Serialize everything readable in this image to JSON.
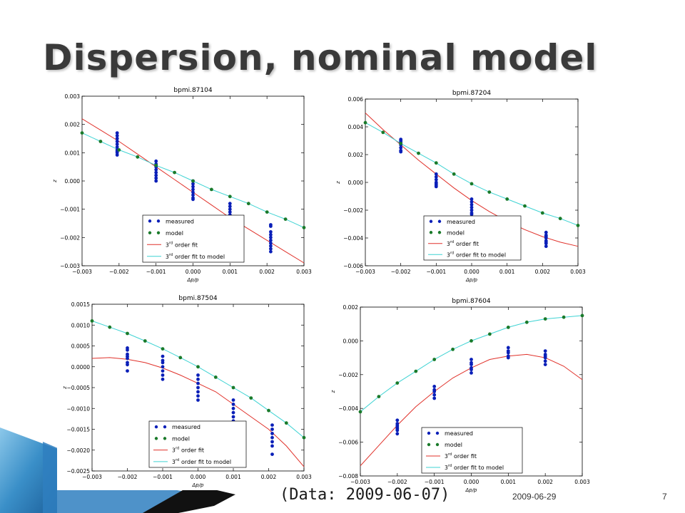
{
  "slide": {
    "title": "Dispersion, nominal model",
    "data_note": "(Data: 2009-06-07)",
    "footer_date": "2009-06-29",
    "page_number": "7"
  },
  "colors": {
    "measured": "#0a1fb8",
    "model": "#1a7a2a",
    "fit": "#e0312a",
    "model_fit": "#3fd3d3",
    "title": "#3a3a3a",
    "deco_blue": "#3a8fc8"
  },
  "chart_data": [
    {
      "type": "scatter",
      "title": "bpmi.87104",
      "xlabel": "Δp/p",
      "ylabel": "z",
      "xlim": [
        -0.003,
        0.003
      ],
      "ylim": [
        -0.003,
        0.003
      ],
      "xticks": [
        "−0.003",
        "−0.002",
        "−0.001",
        "0.000",
        "0.001",
        "0.002",
        "0.003"
      ],
      "yticks": [
        "0.003",
        "0.002",
        "0.001",
        "0.000",
        "−0.001",
        "−0.002",
        "−0.003"
      ],
      "xtick_values": [
        -0.003,
        -0.002,
        -0.001,
        0.0,
        0.001,
        0.002,
        0.003
      ],
      "ytick_values": [
        0.003,
        0.002,
        0.001,
        0.0,
        -0.001,
        -0.002,
        -0.003
      ],
      "legend": {
        "placement": "lower-right",
        "entries": [
          "measured",
          "model",
          "rd order fit",
          "rd order fit to model"
        ]
      },
      "series": [
        {
          "name": "measured",
          "style": "points",
          "x": [
            -0.00205,
            -0.00205,
            -0.00205,
            -0.00205,
            -0.00205,
            -0.00205,
            -0.00205,
            -0.00205,
            -0.00205,
            -0.00205,
            -0.001,
            -0.001,
            -0.001,
            -0.001,
            -0.001,
            -0.001,
            -0.001,
            -0.001,
            -0.001,
            0.0,
            0.0,
            0.0,
            0.0,
            0.0,
            0.0,
            0.0,
            0.0,
            0.001,
            0.001,
            0.001,
            0.001,
            0.001,
            0.001,
            0.001,
            0.0021,
            0.0021,
            0.0021,
            0.0021,
            0.0021,
            0.0021,
            0.0021,
            0.0021,
            0.0021,
            0.0021
          ],
          "y": [
            0.0017,
            0.0016,
            0.0015,
            0.0014,
            0.0013,
            0.0012,
            0.0011,
            0.00105,
            0.001,
            0.00092,
            0.0007,
            0.0006,
            0.00055,
            0.0005,
            0.0004,
            0.0003,
            0.0002,
            0.0001,
            0.0,
            0.0,
            -0.0001,
            -0.0002,
            -0.0003,
            -0.0004,
            -0.0005,
            -0.0006,
            -0.00065,
            -0.0008,
            -0.0009,
            -0.001,
            -0.0011,
            -0.0012,
            -0.0013,
            -0.0015,
            -0.0016,
            -0.0018,
            -0.0019,
            -0.002,
            -0.0021,
            -0.0022,
            -0.0023,
            -0.0024,
            -0.0025,
            -0.00155
          ]
        },
        {
          "name": "model",
          "style": "points",
          "x": [
            -0.003,
            -0.0025,
            -0.002,
            -0.0015,
            -0.001,
            -0.0005,
            0.0,
            0.0005,
            0.001,
            0.0015,
            0.002,
            0.0025,
            0.003
          ],
          "y": [
            0.0017,
            0.0014,
            0.0011,
            0.00085,
            0.00055,
            0.0003,
            0.0,
            -0.0003,
            -0.00055,
            -0.0008,
            -0.0011,
            -0.00135,
            -0.00165
          ]
        },
        {
          "name": "rd order fit",
          "style": "line",
          "x": [
            -0.003,
            -0.0025,
            -0.002,
            -0.0015,
            -0.001,
            -0.0005,
            0.0,
            0.0005,
            0.001,
            0.0015,
            0.002,
            0.0025,
            0.003
          ],
          "y": [
            0.0022,
            0.0018,
            0.0014,
            0.00095,
            0.0005,
            5e-05,
            -0.0004,
            -0.00085,
            -0.0013,
            -0.0017,
            -0.0021,
            -0.0025,
            -0.0029
          ]
        },
        {
          "name": "rd order fit to model",
          "style": "line",
          "x": [
            -0.003,
            -0.0025,
            -0.002,
            -0.0015,
            -0.001,
            -0.0005,
            0.0,
            0.0005,
            0.001,
            0.0015,
            0.002,
            0.0025,
            0.003
          ],
          "y": [
            0.0017,
            0.0014,
            0.0011,
            0.00085,
            0.00055,
            0.0003,
            0.0,
            -0.0003,
            -0.00055,
            -0.0008,
            -0.0011,
            -0.00135,
            -0.00165
          ]
        }
      ]
    },
    {
      "type": "scatter",
      "title": "bpmi.87204",
      "xlabel": "Δp/p",
      "ylabel": "z",
      "xlim": [
        -0.003,
        0.003
      ],
      "ylim": [
        -0.006,
        0.006
      ],
      "xticks": [
        "−0.003",
        "−0.002",
        "−0.001",
        "0.000",
        "0.001",
        "0.002",
        "0.003"
      ],
      "yticks": [
        "0.006",
        "0.004",
        "0.002",
        "0.000",
        "−0.002",
        "−0.004",
        "−0.006"
      ],
      "xtick_values": [
        -0.003,
        -0.002,
        -0.001,
        0.0,
        0.001,
        0.002,
        0.003
      ],
      "ytick_values": [
        0.006,
        0.004,
        0.002,
        0.0,
        -0.002,
        -0.004,
        -0.006
      ],
      "legend": {
        "placement": "lower-right",
        "entries": [
          "measured",
          "model",
          "rd order fit",
          "rd order fit to model"
        ]
      },
      "series": [
        {
          "name": "measured",
          "style": "points",
          "x": [
            -0.002,
            -0.002,
            -0.002,
            -0.002,
            -0.002,
            -0.002,
            -0.002,
            -0.001,
            -0.001,
            -0.001,
            -0.001,
            -0.001,
            -0.001,
            -0.001,
            0.0,
            0.0,
            0.0,
            0.0,
            0.0,
            0.0,
            0.0,
            0.0021,
            0.0021,
            0.0021,
            0.0021,
            0.0021,
            0.0021,
            0.0021,
            0.0021
          ],
          "y": [
            0.0031,
            0.003,
            0.0029,
            0.0027,
            0.0025,
            0.0023,
            0.0022,
            0.0006,
            0.0004,
            0.0002,
            0.0,
            -0.0001,
            -0.0002,
            -0.0003,
            -0.0012,
            -0.0014,
            -0.0016,
            -0.0018,
            -0.002,
            -0.0022,
            -0.0023,
            -0.0036,
            -0.0038,
            -0.0039,
            -0.004,
            -0.0042,
            -0.0043,
            -0.0044,
            -0.0046
          ]
        },
        {
          "name": "model",
          "style": "points",
          "x": [
            -0.003,
            -0.0025,
            -0.002,
            -0.0015,
            -0.001,
            -0.0005,
            0.0,
            0.0005,
            0.001,
            0.0015,
            0.002,
            0.0025,
            0.003
          ],
          "y": [
            0.0043,
            0.0036,
            0.0028,
            0.0021,
            0.0014,
            0.0006,
            -0.0001,
            -0.0007,
            -0.0012,
            -0.0017,
            -0.0022,
            -0.0026,
            -0.0031
          ]
        },
        {
          "name": "rd order fit",
          "style": "line",
          "x": [
            -0.003,
            -0.0025,
            -0.002,
            -0.0015,
            -0.001,
            -0.0005,
            0.0,
            0.0005,
            0.001,
            0.0015,
            0.002,
            0.0025,
            0.003
          ],
          "y": [
            0.005,
            0.0038,
            0.0027,
            0.0016,
            0.0006,
            -0.0004,
            -0.0013,
            -0.0021,
            -0.0028,
            -0.0034,
            -0.0039,
            -0.0043,
            -0.0046
          ]
        },
        {
          "name": "rd order fit to model",
          "style": "line",
          "x": [
            -0.003,
            -0.0025,
            -0.002,
            -0.0015,
            -0.001,
            -0.0005,
            0.0,
            0.0005,
            0.001,
            0.0015,
            0.002,
            0.0025,
            0.003
          ],
          "y": [
            0.0043,
            0.0036,
            0.0028,
            0.0021,
            0.0014,
            0.0006,
            -0.0001,
            -0.0007,
            -0.0012,
            -0.0017,
            -0.0022,
            -0.0026,
            -0.0031
          ]
        }
      ]
    },
    {
      "type": "scatter",
      "title": "bpmi.87504",
      "xlabel": "Δp/p",
      "ylabel": "z",
      "xlim": [
        -0.003,
        0.003
      ],
      "ylim": [
        -0.0025,
        0.0015
      ],
      "xticks": [
        "−0.003",
        "−0.002",
        "−0.001",
        "0.000",
        "0.001",
        "0.002",
        "0.003"
      ],
      "yticks": [
        "0.0015",
        "0.0010",
        "0.0005",
        "0.0000",
        "−0.0005",
        "−0.0010",
        "−0.0015",
        "−0.0020",
        "−0.0025"
      ],
      "xtick_values": [
        -0.003,
        -0.002,
        -0.001,
        0.0,
        0.001,
        0.002,
        0.003
      ],
      "ytick_values": [
        0.0015,
        0.001,
        0.0005,
        0.0,
        -0.0005,
        -0.001,
        -0.0015,
        -0.002,
        -0.0025
      ],
      "legend": {
        "placement": "lower-right",
        "entries": [
          "measured",
          "model",
          "rd order fit",
          "rd order fit to model"
        ]
      },
      "series": [
        {
          "name": "measured",
          "style": "points",
          "x": [
            -0.002,
            -0.002,
            -0.002,
            -0.002,
            -0.002,
            -0.002,
            -0.002,
            -0.002,
            -0.001,
            -0.001,
            -0.001,
            -0.001,
            -0.001,
            -0.001,
            -0.001,
            0.0,
            0.0,
            0.0,
            0.0,
            0.0,
            0.0,
            0.0,
            0.001,
            0.001,
            0.001,
            0.001,
            0.001,
            0.001,
            0.0021,
            0.0021,
            0.0021,
            0.0021,
            0.0021,
            0.0021,
            0.0021
          ],
          "y": [
            0.00045,
            0.0004,
            0.0003,
            0.00025,
            0.0002,
            0.0001,
            5e-05,
            -0.0001,
            0.00025,
            0.00015,
            0.0001,
            0.0,
            -0.0001,
            -0.0002,
            -0.0003,
            -0.0002,
            -0.0003,
            -0.0004,
            -0.0005,
            -0.0006,
            -0.0007,
            -0.0008,
            -0.0008,
            -0.0009,
            -0.001,
            -0.0011,
            -0.0012,
            -0.0013,
            -0.0014,
            -0.0015,
            -0.0016,
            -0.0017,
            -0.0018,
            -0.0019,
            -0.0021
          ]
        },
        {
          "name": "model",
          "style": "points",
          "x": [
            -0.003,
            -0.0025,
            -0.002,
            -0.0015,
            -0.001,
            -0.0005,
            0.0,
            0.0005,
            0.001,
            0.0015,
            0.002,
            0.0025,
            0.003
          ],
          "y": [
            0.0011,
            0.00095,
            0.0008,
            0.00062,
            0.00043,
            0.00022,
            0.0,
            -0.00025,
            -0.0005,
            -0.00075,
            -0.00105,
            -0.00135,
            -0.0017
          ]
        },
        {
          "name": "rd order fit",
          "style": "line",
          "x": [
            -0.003,
            -0.0025,
            -0.002,
            -0.0015,
            -0.001,
            -0.0005,
            0.0,
            0.0005,
            0.001,
            0.0015,
            0.002,
            0.0025,
            0.003
          ],
          "y": [
            0.0002,
            0.00022,
            0.00018,
            0.0001,
            -3e-05,
            -0.0002,
            -0.0004,
            -0.0006,
            -0.0009,
            -0.0012,
            -0.0015,
            -0.0019,
            -0.0024
          ]
        },
        {
          "name": "rd order fit to model",
          "style": "line",
          "x": [
            -0.003,
            -0.0025,
            -0.002,
            -0.0015,
            -0.001,
            -0.0005,
            0.0,
            0.0005,
            0.001,
            0.0015,
            0.002,
            0.0025,
            0.003
          ],
          "y": [
            0.0011,
            0.00095,
            0.0008,
            0.00062,
            0.00043,
            0.00022,
            0.0,
            -0.00025,
            -0.0005,
            -0.00075,
            -0.00105,
            -0.00135,
            -0.0017
          ]
        }
      ]
    },
    {
      "type": "scatter",
      "title": "bpmi.87604",
      "xlabel": "Δp/p",
      "ylabel": "z",
      "xlim": [
        -0.003,
        0.003
      ],
      "ylim": [
        -0.008,
        0.002
      ],
      "xticks": [
        "−0.003",
        "−0.002",
        "−0.001",
        "0.000",
        "0.001",
        "0.002",
        "0.003"
      ],
      "yticks": [
        "0.002",
        "0.000",
        "−0.002",
        "−0.004",
        "−0.006",
        "−0.008"
      ],
      "xtick_values": [
        -0.003,
        -0.002,
        -0.001,
        0.0,
        0.001,
        0.002,
        0.003
      ],
      "ytick_values": [
        0.002,
        0.0,
        -0.002,
        -0.004,
        -0.006,
        -0.008
      ],
      "legend": {
        "placement": "lower-center",
        "entries": [
          "measured",
          "model",
          "rd order fit",
          "rd order fit to model"
        ]
      },
      "series": [
        {
          "name": "measured",
          "style": "points",
          "x": [
            -0.002,
            -0.002,
            -0.002,
            -0.002,
            -0.002,
            -0.002,
            -0.002,
            -0.001,
            -0.001,
            -0.001,
            -0.001,
            -0.001,
            0.0,
            0.0,
            0.0,
            0.0,
            0.0,
            0.0,
            0.001,
            0.001,
            0.001,
            0.001,
            0.001,
            0.002,
            0.002,
            0.002,
            0.002,
            0.002,
            0.002
          ],
          "y": [
            -0.0047,
            -0.0049,
            -0.005,
            -0.0051,
            -0.0052,
            -0.0053,
            -0.0055,
            -0.0027,
            -0.0029,
            -0.003,
            -0.0032,
            -0.0034,
            -0.0011,
            -0.0013,
            -0.0014,
            -0.0016,
            -0.0017,
            -0.0019,
            -0.0004,
            -0.0006,
            -0.0007,
            -0.0009,
            -0.001,
            -0.0006,
            -0.0008,
            -0.0009,
            -0.001,
            -0.0012,
            -0.0014
          ]
        },
        {
          "name": "model",
          "style": "points",
          "x": [
            -0.003,
            -0.0025,
            -0.002,
            -0.0015,
            -0.001,
            -0.0005,
            0.0,
            0.0005,
            0.001,
            0.0015,
            0.002,
            0.0025,
            0.003
          ],
          "y": [
            -0.0042,
            -0.0033,
            -0.0025,
            -0.0018,
            -0.0011,
            -0.0005,
            0.0,
            0.0004,
            0.0008,
            0.0011,
            0.0013,
            0.0014,
            0.0015
          ]
        },
        {
          "name": "rd order fit",
          "style": "line",
          "x": [
            -0.003,
            -0.0025,
            -0.002,
            -0.0015,
            -0.001,
            -0.0005,
            0.0,
            0.0005,
            0.001,
            0.0015,
            0.002,
            0.0025,
            0.003
          ],
          "y": [
            -0.0074,
            -0.0062,
            -0.005,
            -0.0039,
            -0.003,
            -0.0022,
            -0.0016,
            -0.0011,
            -0.0009,
            -0.0008,
            -0.001,
            -0.0015,
            -0.0023
          ]
        },
        {
          "name": "rd order fit to model",
          "style": "line",
          "x": [
            -0.003,
            -0.0025,
            -0.002,
            -0.0015,
            -0.001,
            -0.0005,
            0.0,
            0.0005,
            0.001,
            0.0015,
            0.002,
            0.0025,
            0.003
          ],
          "y": [
            -0.0042,
            -0.0033,
            -0.0025,
            -0.0018,
            -0.0011,
            -0.0005,
            0.0,
            0.0004,
            0.0008,
            0.0011,
            0.0013,
            0.0014,
            0.0015
          ]
        }
      ]
    }
  ]
}
